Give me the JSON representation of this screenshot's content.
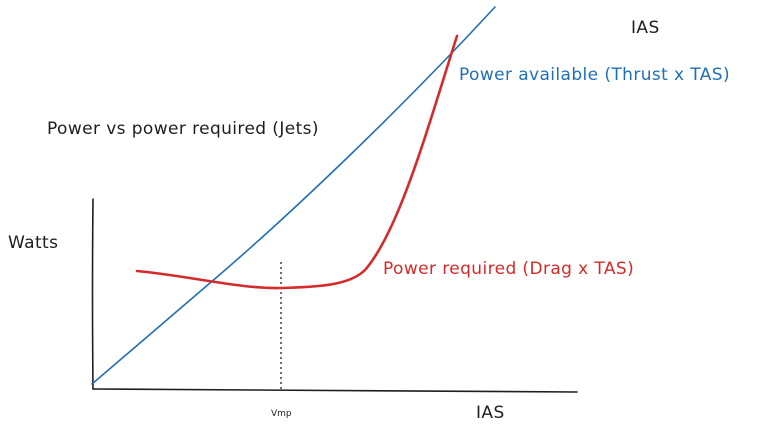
{
  "title": "Power vs power required (Jets)",
  "labels": {
    "y_axis": "Watts",
    "x_axis": "IAS",
    "x_axis_top": "IAS",
    "vmp": "Vmp",
    "power_available": "Power available (Thrust x TAS)",
    "power_required": "Power required (Drag x TAS)"
  },
  "colors": {
    "power_available": "#1f6fb8",
    "power_required": "#d62a2a",
    "axis": "#1e1e1e",
    "text": "#1e1e1e"
  }
}
